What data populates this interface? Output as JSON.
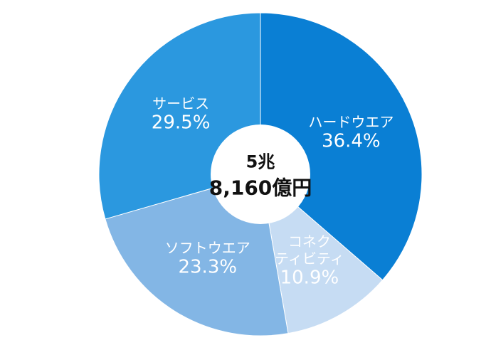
{
  "chart_data": {
    "type": "donut",
    "categories": [
      "ハードウエア",
      "コネク\nティビティ",
      "ソフトウエア",
      "サービス"
    ],
    "values": [
      36.4,
      10.9,
      23.3,
      29.5
    ],
    "value_labels": [
      "36.4%",
      "10.9%",
      "23.3%",
      "29.5%"
    ],
    "colors": [
      "#0a7fd4",
      "#c6dcf3",
      "#83b6e5",
      "#2b98df"
    ],
    "center_label": [
      "5兆",
      "8,160億円"
    ]
  }
}
